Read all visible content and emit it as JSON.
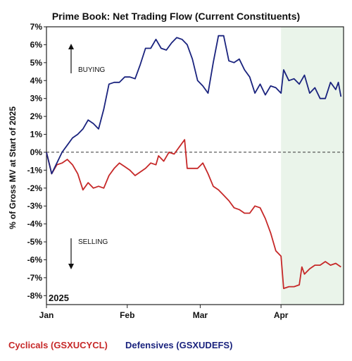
{
  "chart_data": {
    "type": "line",
    "title": "Prime Book: Net Trading Flow (Current Constituents)",
    "ylabel": "% of Gross MV at Start of 2025",
    "ylim": [
      -8.5,
      7
    ],
    "yticks": [
      7,
      6,
      5,
      4,
      3,
      2,
      1,
      0,
      -1,
      -2,
      -3,
      -4,
      -5,
      -6,
      -7,
      -8
    ],
    "ytick_labels": [
      "7%",
      "6%",
      "5%",
      "4%",
      "3%",
      "2%",
      "1%",
      "0%",
      "-1%",
      "-2%",
      "-3%",
      "-4%",
      "-5%",
      "-6%",
      "-7%",
      "-8%"
    ],
    "x_range": [
      "2025-01-01",
      "2025-04-25"
    ],
    "xticks": [
      {
        "date": "2025-01-01",
        "label": "Jan"
      },
      {
        "date": "2025-02-01",
        "label": "Feb"
      },
      {
        "date": "2025-03-01",
        "label": "Mar"
      },
      {
        "date": "2025-04-01",
        "label": "Apr"
      }
    ],
    "year_label": "2025",
    "zero_line": true,
    "shaded_region": {
      "start": "2025-04-01",
      "end": "2025-04-25",
      "color": "#eaf4ea"
    },
    "annotations": [
      {
        "text": "BUYING",
        "arrow": "up"
      },
      {
        "text": "SELLING",
        "arrow": "down"
      }
    ],
    "legend_position": "bottom",
    "series": [
      {
        "name": "Cyclicals (GSXUCYCL)",
        "color": "#c62828",
        "points": [
          [
            "2025-01-01",
            0.0
          ],
          [
            "2025-01-03",
            -1.2
          ],
          [
            "2025-01-05",
            -0.7
          ],
          [
            "2025-01-07",
            -0.6
          ],
          [
            "2025-01-09",
            -0.4
          ],
          [
            "2025-01-11",
            -0.7
          ],
          [
            "2025-01-13",
            -1.2
          ],
          [
            "2025-01-15",
            -2.1
          ],
          [
            "2025-01-17",
            -1.7
          ],
          [
            "2025-01-19",
            -2.0
          ],
          [
            "2025-01-21",
            -1.9
          ],
          [
            "2025-01-23",
            -2.0
          ],
          [
            "2025-01-25",
            -1.3
          ],
          [
            "2025-01-27",
            -0.9
          ],
          [
            "2025-01-29",
            -0.6
          ],
          [
            "2025-01-31",
            -0.8
          ],
          [
            "2025-02-02",
            -1.0
          ],
          [
            "2025-02-04",
            -1.3
          ],
          [
            "2025-02-06",
            -1.1
          ],
          [
            "2025-02-08",
            -0.9
          ],
          [
            "2025-02-10",
            -0.6
          ],
          [
            "2025-02-12",
            -0.7
          ],
          [
            "2025-02-13",
            -0.2
          ],
          [
            "2025-02-15",
            -0.5
          ],
          [
            "2025-02-17",
            0.0
          ],
          [
            "2025-02-19",
            -0.1
          ],
          [
            "2025-02-21",
            0.3
          ],
          [
            "2025-02-23",
            0.7
          ],
          [
            "2025-02-24",
            -0.9
          ],
          [
            "2025-02-26",
            -0.9
          ],
          [
            "2025-02-28",
            -0.9
          ],
          [
            "2025-03-02",
            -0.6
          ],
          [
            "2025-03-04",
            -1.2
          ],
          [
            "2025-03-06",
            -1.9
          ],
          [
            "2025-03-08",
            -2.1
          ],
          [
            "2025-03-10",
            -2.4
          ],
          [
            "2025-03-12",
            -2.7
          ],
          [
            "2025-03-14",
            -3.1
          ],
          [
            "2025-03-16",
            -3.2
          ],
          [
            "2025-03-18",
            -3.4
          ],
          [
            "2025-03-20",
            -3.4
          ],
          [
            "2025-03-22",
            -3.0
          ],
          [
            "2025-03-24",
            -3.1
          ],
          [
            "2025-03-26",
            -3.7
          ],
          [
            "2025-03-28",
            -4.5
          ],
          [
            "2025-03-30",
            -5.5
          ],
          [
            "2025-04-01",
            -5.8
          ],
          [
            "2025-04-02",
            -7.6
          ],
          [
            "2025-04-04",
            -7.5
          ],
          [
            "2025-04-06",
            -7.5
          ],
          [
            "2025-04-08",
            -7.4
          ],
          [
            "2025-04-09",
            -6.4
          ],
          [
            "2025-04-10",
            -6.8
          ],
          [
            "2025-04-12",
            -6.5
          ],
          [
            "2025-04-14",
            -6.3
          ],
          [
            "2025-04-16",
            -6.3
          ],
          [
            "2025-04-18",
            -6.1
          ],
          [
            "2025-04-20",
            -6.3
          ],
          [
            "2025-04-22",
            -6.2
          ],
          [
            "2025-04-24",
            -6.4
          ]
        ]
      },
      {
        "name": "Defensives (GSXUDEFS)",
        "color": "#1a237e",
        "points": [
          [
            "2025-01-01",
            0.0
          ],
          [
            "2025-01-03",
            -1.2
          ],
          [
            "2025-01-05",
            -0.6
          ],
          [
            "2025-01-07",
            0.0
          ],
          [
            "2025-01-09",
            0.4
          ],
          [
            "2025-01-11",
            0.8
          ],
          [
            "2025-01-13",
            1.0
          ],
          [
            "2025-01-15",
            1.3
          ],
          [
            "2025-01-17",
            1.8
          ],
          [
            "2025-01-19",
            1.6
          ],
          [
            "2025-01-21",
            1.3
          ],
          [
            "2025-01-23",
            2.4
          ],
          [
            "2025-01-25",
            3.8
          ],
          [
            "2025-01-27",
            3.9
          ],
          [
            "2025-01-29",
            3.9
          ],
          [
            "2025-01-31",
            4.2
          ],
          [
            "2025-02-02",
            4.2
          ],
          [
            "2025-02-04",
            4.1
          ],
          [
            "2025-02-06",
            4.9
          ],
          [
            "2025-02-08",
            5.8
          ],
          [
            "2025-02-10",
            5.8
          ],
          [
            "2025-02-12",
            6.3
          ],
          [
            "2025-02-14",
            5.8
          ],
          [
            "2025-02-16",
            5.7
          ],
          [
            "2025-02-18",
            6.1
          ],
          [
            "2025-02-20",
            6.4
          ],
          [
            "2025-02-22",
            6.3
          ],
          [
            "2025-02-24",
            6.0
          ],
          [
            "2025-02-26",
            5.2
          ],
          [
            "2025-02-28",
            4.0
          ],
          [
            "2025-03-02",
            3.7
          ],
          [
            "2025-03-04",
            3.3
          ],
          [
            "2025-03-06",
            5.0
          ],
          [
            "2025-03-08",
            6.5
          ],
          [
            "2025-03-10",
            6.5
          ],
          [
            "2025-03-12",
            5.1
          ],
          [
            "2025-03-14",
            5.0
          ],
          [
            "2025-03-16",
            5.2
          ],
          [
            "2025-03-18",
            4.6
          ],
          [
            "2025-03-20",
            4.2
          ],
          [
            "2025-03-22",
            3.3
          ],
          [
            "2025-03-24",
            3.8
          ],
          [
            "2025-03-26",
            3.2
          ],
          [
            "2025-03-28",
            3.7
          ],
          [
            "2025-03-30",
            3.6
          ],
          [
            "2025-04-01",
            3.3
          ],
          [
            "2025-04-02",
            4.6
          ],
          [
            "2025-04-04",
            4.0
          ],
          [
            "2025-04-06",
            4.1
          ],
          [
            "2025-04-08",
            3.8
          ],
          [
            "2025-04-10",
            4.3
          ],
          [
            "2025-04-12",
            3.3
          ],
          [
            "2025-04-14",
            3.6
          ],
          [
            "2025-04-16",
            3.0
          ],
          [
            "2025-04-18",
            3.0
          ],
          [
            "2025-04-20",
            3.9
          ],
          [
            "2025-04-22",
            3.5
          ],
          [
            "2025-04-23",
            3.9
          ],
          [
            "2025-04-24",
            3.1
          ]
        ]
      }
    ]
  }
}
